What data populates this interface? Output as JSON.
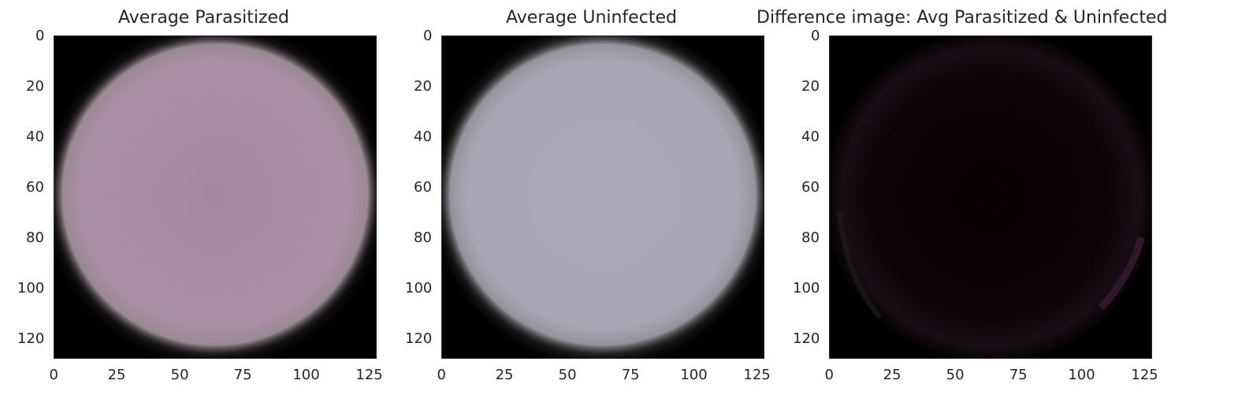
{
  "chart_data": [
    {
      "type": "heatmap",
      "title": "Average Parasitized",
      "xlim": [
        0,
        128
      ],
      "ylim": [
        128,
        0
      ],
      "xticks": [
        "0",
        "25",
        "50",
        "75",
        "100",
        "125"
      ],
      "yticks": [
        "0",
        "20",
        "40",
        "60",
        "80",
        "100",
        "120"
      ],
      "image": {
        "content": "averaged cell image",
        "cell_color": "#a889a4",
        "background_color": "#000000"
      }
    },
    {
      "type": "heatmap",
      "title": "Average Uninfected",
      "xlim": [
        0,
        128
      ],
      "ylim": [
        128,
        0
      ],
      "xticks": [
        "0",
        "25",
        "50",
        "75",
        "100",
        "125"
      ],
      "yticks": [
        "0",
        "20",
        "40",
        "60",
        "80",
        "100",
        "120"
      ],
      "image": {
        "content": "averaged cell image",
        "cell_color": "#a8a3b6",
        "background_color": "#000000"
      }
    },
    {
      "type": "heatmap",
      "title": "Difference image: Avg Parasitized & Uninfected",
      "xlim": [
        0,
        128
      ],
      "ylim": [
        128,
        0
      ],
      "xticks": [
        "0",
        "25",
        "50",
        "75",
        "100",
        "125"
      ],
      "yticks": [
        "0",
        "20",
        "40",
        "60",
        "80",
        "100",
        "120"
      ],
      "image": {
        "content": "difference image",
        "cell_color": "#0c0204",
        "background_color": "#000000"
      }
    }
  ]
}
